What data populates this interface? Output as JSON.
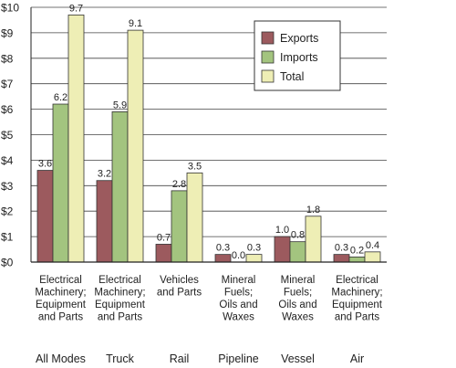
{
  "chart_data": {
    "type": "bar",
    "title": "",
    "xlabel": "",
    "ylabel": "",
    "ylim": [
      0,
      10
    ],
    "y_ticks": [
      "$0",
      "$1",
      "$2",
      "$3",
      "$4",
      "$5",
      "$6",
      "$7",
      "$8",
      "$9",
      "$10"
    ],
    "grid": true,
    "legend_position": "top-right",
    "groups": [
      {
        "mode": "All Modes",
        "category": [
          "Electrical",
          "Machinery;",
          "Equipment",
          "and Parts"
        ]
      },
      {
        "mode": "Truck",
        "category": [
          "Electrical",
          "Machinery;",
          "Equipment",
          "and Parts"
        ]
      },
      {
        "mode": "Rail",
        "category": [
          "Vehicles",
          "and Parts"
        ]
      },
      {
        "mode": "Pipeline",
        "category": [
          "Mineral",
          "Fuels;",
          "Oils and",
          "Waxes"
        ]
      },
      {
        "mode": "Vessel",
        "category": [
          "Mineral",
          "Fuels;",
          "Oils and",
          "Waxes"
        ]
      },
      {
        "mode": "Air",
        "category": [
          "Electrical",
          "Machinery;",
          "Equipment",
          "and Parts"
        ]
      }
    ],
    "series": [
      {
        "name": "Exports",
        "color": "#9c5a5e",
        "values": [
          3.6,
          3.2,
          0.7,
          0.3,
          1.0,
          0.3
        ],
        "labels": [
          "3.6",
          "3.2",
          "0.7",
          "0.3",
          "1.0",
          "0.3"
        ]
      },
      {
        "name": "Imports",
        "color": "#a3c47f",
        "values": [
          6.2,
          5.9,
          2.8,
          0.0,
          0.8,
          0.2
        ],
        "labels": [
          "6.2",
          "5.9",
          "2.8",
          "0.0",
          "0.8",
          "0.2"
        ]
      },
      {
        "name": "Total",
        "color": "#eeeeb5",
        "values": [
          9.7,
          9.1,
          3.5,
          0.3,
          1.8,
          0.4
        ],
        "labels": [
          "9.7",
          "9.1",
          "3.5",
          "0.3",
          "1.8",
          "0.4"
        ]
      }
    ]
  }
}
